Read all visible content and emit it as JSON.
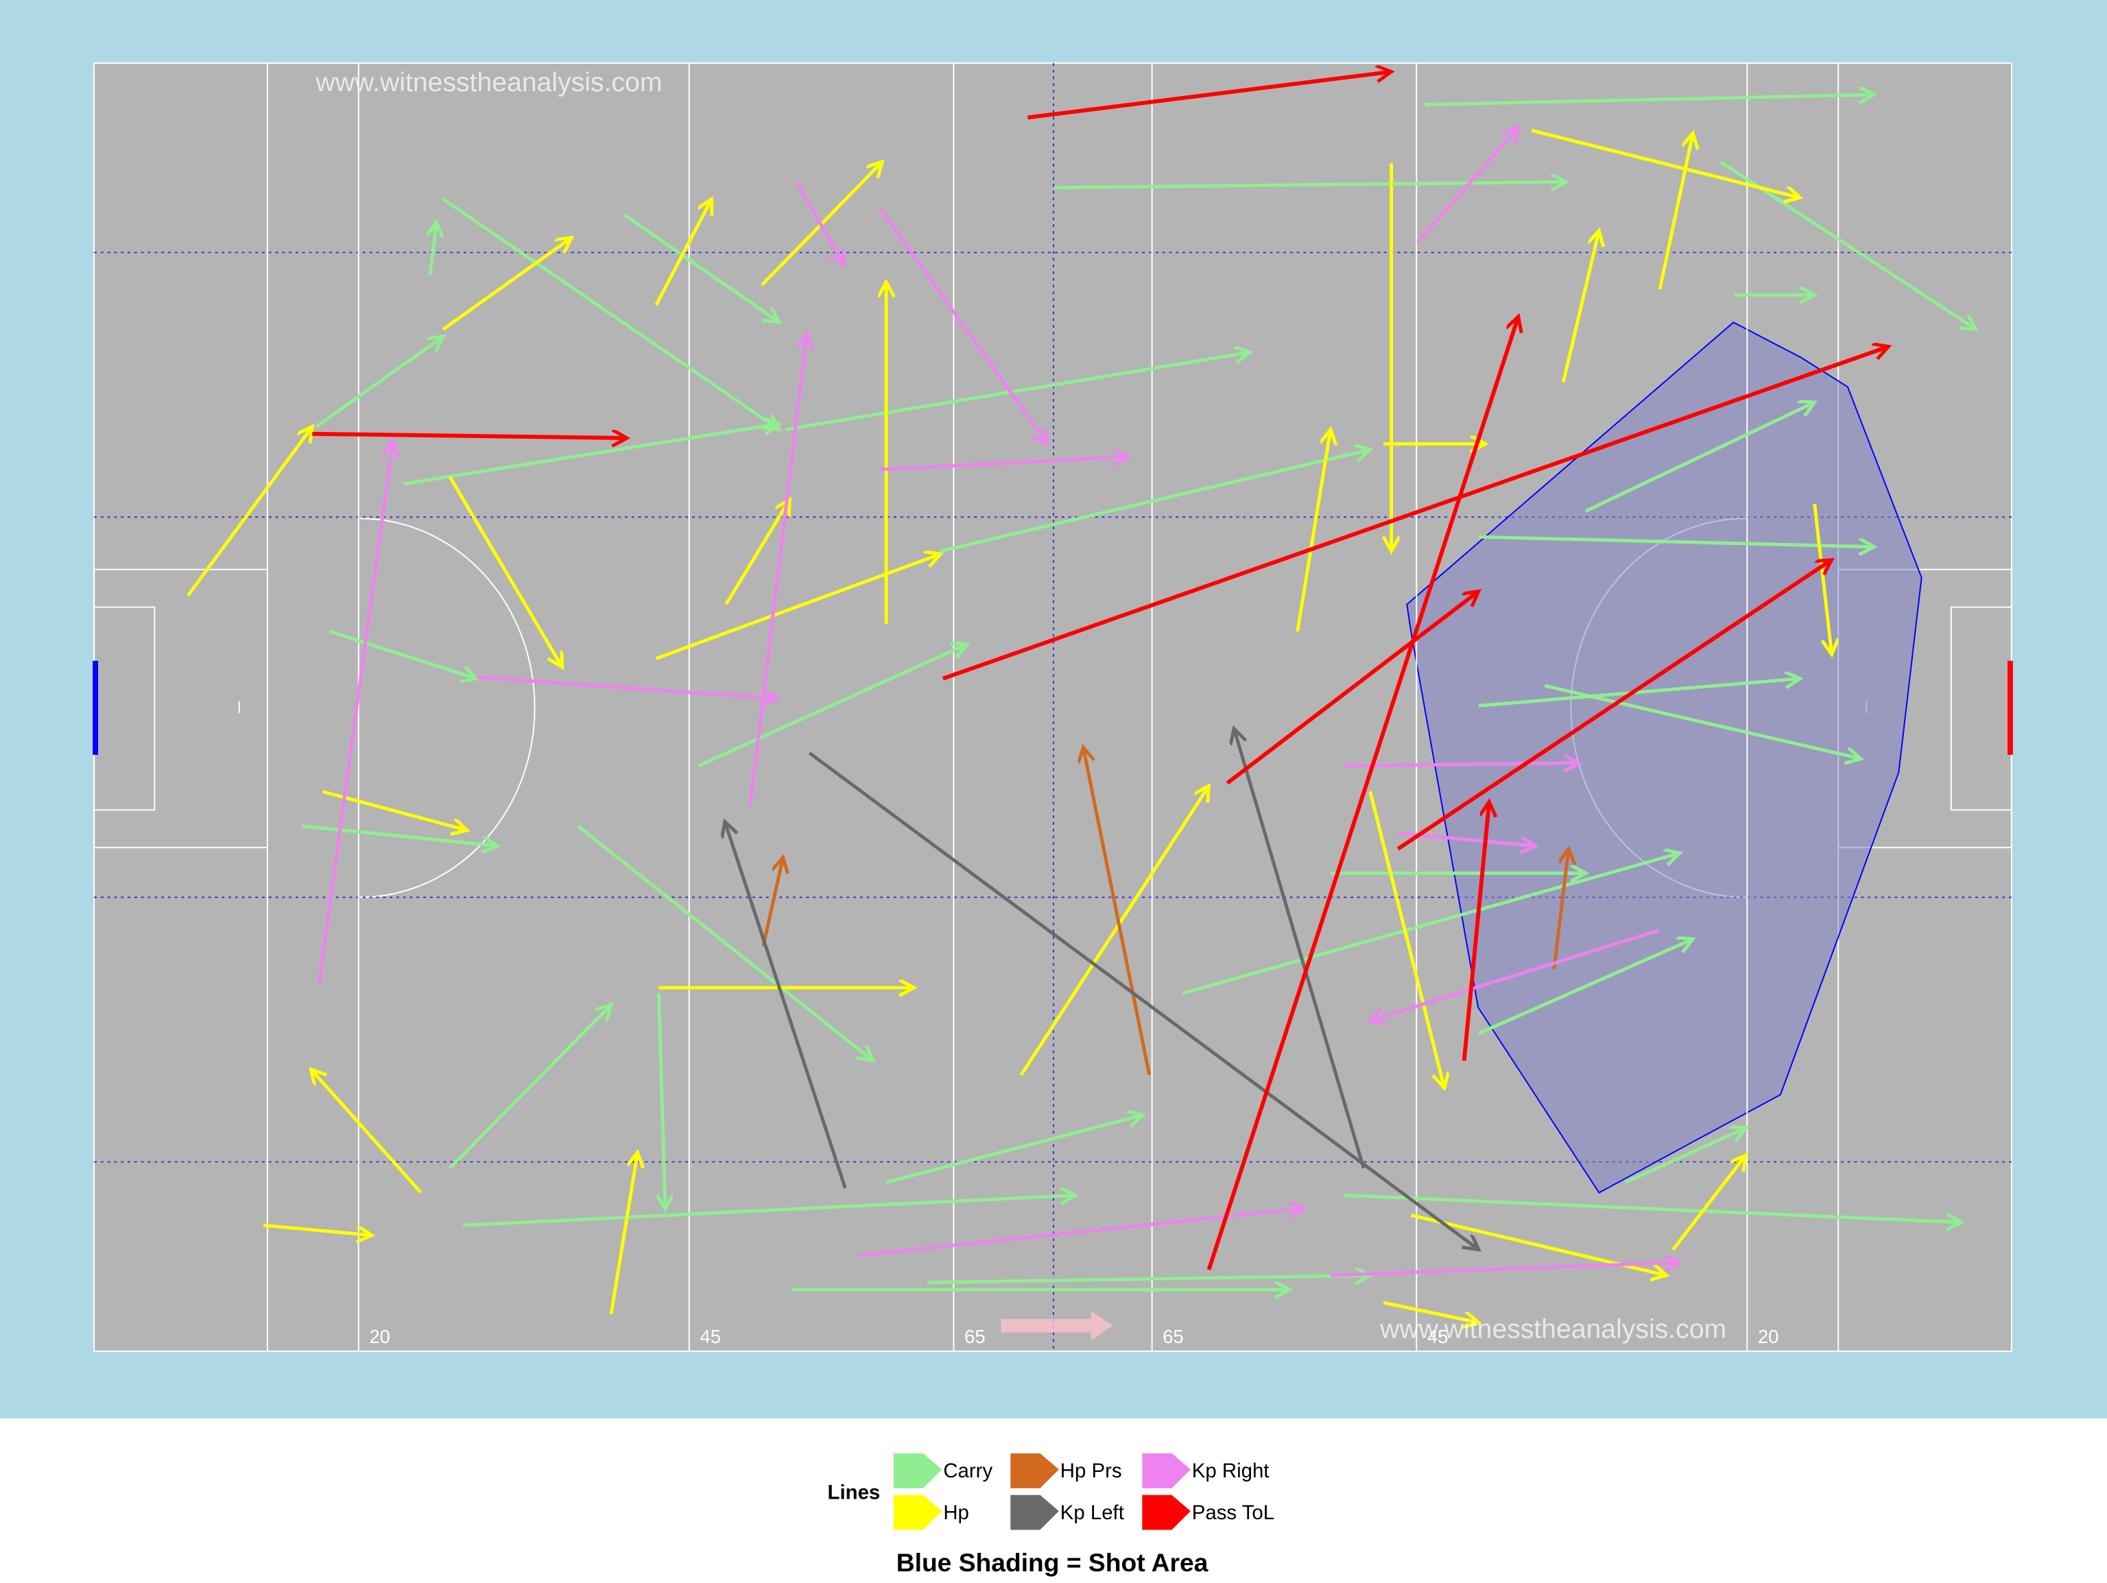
{
  "chart_data": {
    "type": "arrow-pitch",
    "watermark": "www.witnesstheanalysis.com",
    "caption": "Blue Shading = Shot Area",
    "legend_title": "Lines",
    "xlim": [
      0,
      145
    ],
    "ylim": [
      0,
      90
    ],
    "xticks": [
      20,
      45,
      65,
      {
        "value": 80,
        "label": "65"
      },
      {
        "value": 100,
        "label": "45"
      },
      {
        "value": 125,
        "label": "20"
      }
    ],
    "series": [
      {
        "name": "Carry",
        "color": "#90ee90",
        "arrows": [
          [
            16.8,
            25.4,
            26.4,
            19.1
          ],
          [
            26.4,
            9.5,
            51.8,
            25.6
          ],
          [
            100.6,
            2.9,
            134.6,
            2.2
          ],
          [
            123.0,
            6.9,
            142.3,
            18.6
          ],
          [
            23.4,
            29.4,
            51.8,
            25.2
          ],
          [
            15.7,
            53.3,
            30.5,
            54.7
          ],
          [
            17.8,
            39.7,
            28.9,
            43.0
          ],
          [
            26.9,
            77.2,
            39.1,
            65.8
          ],
          [
            27.9,
            81.2,
            74.2,
            79.1
          ],
          [
            52.8,
            85.7,
            90.4,
            85.7
          ],
          [
            63.0,
            85.2,
            96.5,
            84.7
          ],
          [
            94.5,
            79.1,
            141.2,
            81.0
          ],
          [
            104.7,
            44.9,
            129.0,
            43.0
          ],
          [
            109.7,
            43.5,
            133.6,
            48.6
          ],
          [
            104.7,
            67.8,
            120.9,
            61.2
          ],
          [
            104.7,
            33.1,
            134.6,
            33.8
          ],
          [
            36.6,
            53.3,
            58.9,
            69.7
          ],
          [
            42.7,
            65.0,
            43.2,
            80.1
          ],
          [
            72.6,
            8.7,
            111.3,
            8.3
          ],
          [
            52.3,
            25.6,
            87.4,
            20.2
          ],
          [
            82.3,
            65.0,
            119.9,
            55.2
          ],
          [
            45.7,
            49.1,
            66.0,
            40.6
          ],
          [
            112.8,
            31.3,
            130.1,
            23.7
          ],
          [
            59.9,
            78.2,
            79.3,
            73.5
          ],
          [
            115.8,
            78.2,
            124.9,
            74.4
          ],
          [
            64.0,
            34.1,
            96.5,
            27.0
          ],
          [
            40.1,
            10.6,
            51.8,
            18.1
          ],
          [
            25.4,
            14.8,
            25.9,
            11.1
          ],
          [
            93.5,
            56.6,
            112.8,
            56.6
          ],
          [
            124.0,
            16.2,
            130.1,
            16.2
          ]
        ]
      },
      {
        "name": "Hp",
        "color": "#ffff00",
        "arrows": [
          [
            7.1,
            37.2,
            16.5,
            25.4
          ],
          [
            12.8,
            81.2,
            21.0,
            81.9
          ],
          [
            24.7,
            78.9,
            16.4,
            70.3
          ],
          [
            26.9,
            28.9,
            35.4,
            42.2
          ],
          [
            42.5,
            16.9,
            46.7,
            9.5
          ],
          [
            50.5,
            15.5,
            59.6,
            6.9
          ],
          [
            26.4,
            18.6,
            36.1,
            12.2
          ],
          [
            108.7,
            4.7,
            129.0,
            9.4
          ],
          [
            130.1,
            30.8,
            131.4,
            41.3
          ],
          [
            111.1,
            22.3,
            113.8,
            11.7
          ],
          [
            118.4,
            15.8,
            120.9,
            4.9
          ],
          [
            42.5,
            41.6,
            64.0,
            34.3
          ],
          [
            17.3,
            50.9,
            28.2,
            53.6
          ],
          [
            39.1,
            87.4,
            41.1,
            76.1
          ],
          [
            70.1,
            70.7,
            84.3,
            50.5
          ],
          [
            59.9,
            39.2,
            59.9,
            15.3
          ],
          [
            98.1,
            7.0,
            98.1,
            34.1
          ],
          [
            42.7,
            64.6,
            62.0,
            64.6
          ],
          [
            99.6,
            80.5,
            118.9,
            84.7
          ],
          [
            97.5,
            86.6,
            104.7,
            88.0
          ],
          [
            119.4,
            82.9,
            124.9,
            76.3
          ],
          [
            47.8,
            37.8,
            52.6,
            30.5
          ],
          [
            91.0,
            39.7,
            93.5,
            25.6
          ],
          [
            97.5,
            26.6,
            105.2,
            26.6
          ],
          [
            96.5,
            50.9,
            102.1,
            71.6
          ]
        ]
      },
      {
        "name": "Hp Prs",
        "color": "#d2691e",
        "arrows": [
          [
            79.8,
            70.7,
            74.8,
            47.8
          ],
          [
            50.6,
            61.7,
            52.1,
            55.5
          ],
          [
            110.4,
            63.3,
            111.5,
            54.9
          ]
        ]
      },
      {
        "name": "Kp Left",
        "color": "#696969",
        "arrows": [
          [
            54.1,
            48.2,
            104.7,
            82.9
          ],
          [
            56.8,
            78.6,
            47.7,
            53.0
          ],
          [
            96.0,
            77.2,
            86.2,
            46.5
          ]
        ]
      },
      {
        "name": "Kp Right",
        "color": "#ee82ee",
        "arrows": [
          [
            17.0,
            64.4,
            22.6,
            26.4
          ],
          [
            28.9,
            42.9,
            51.7,
            44.4
          ],
          [
            53.2,
            8.4,
            56.7,
            14.1
          ],
          [
            49.6,
            51.9,
            53.9,
            18.9
          ],
          [
            94.5,
            49.1,
            112.3,
            48.9
          ],
          [
            98.6,
            53.8,
            109.0,
            54.7
          ],
          [
            57.9,
            83.3,
            91.5,
            80.0
          ],
          [
            118.3,
            60.6,
            96.5,
            66.9
          ],
          [
            59.4,
            10.1,
            72.1,
            26.6
          ],
          [
            100.1,
            12.5,
            107.7,
            4.5
          ],
          [
            93.5,
            84.7,
            119.9,
            83.8
          ],
          [
            59.4,
            28.4,
            78.2,
            27.5
          ]
        ]
      },
      {
        "name": "Pass ToL",
        "color": "#ff0000",
        "arrows": [
          [
            70.6,
            3.8,
            98.1,
            0.6
          ],
          [
            16.5,
            25.9,
            40.3,
            26.2
          ],
          [
            64.2,
            43.0,
            135.7,
            19.8
          ],
          [
            98.6,
            54.9,
            131.4,
            34.7
          ],
          [
            85.7,
            50.3,
            104.7,
            36.9
          ],
          [
            84.3,
            84.3,
            107.7,
            17.7
          ],
          [
            103.6,
            69.7,
            105.5,
            51.6
          ]
        ]
      }
    ]
  }
}
